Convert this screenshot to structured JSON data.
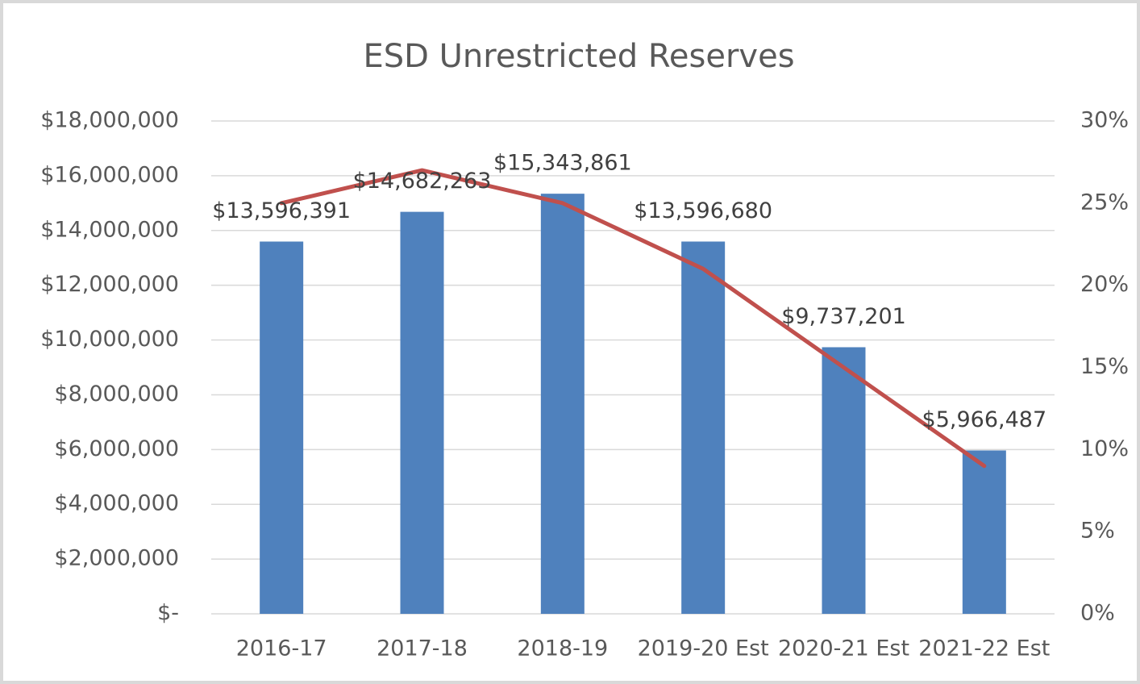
{
  "chart_data": {
    "type": "combo",
    "title": "ESD Unrestricted Reserves",
    "categories": [
      "2016-17",
      "2017-18",
      "2018-19",
      "2019-20 Est",
      "2020-21 Est",
      "2021-22 Est"
    ],
    "series": [
      {
        "type": "bar",
        "color": "#4f81bd",
        "values": [
          13596391,
          14682263,
          15343861,
          13596680,
          9737201,
          5966487
        ],
        "value_labels": [
          "$13,596,391",
          "$14,682,263",
          "$15,343,861",
          "$13,596,680",
          "$9,737,201",
          "$5,966,487"
        ]
      },
      {
        "type": "line",
        "axis": "y2",
        "color": "#c0504d",
        "values": [
          25,
          27,
          25,
          21,
          15,
          9
        ]
      }
    ],
    "ylim": [
      0,
      18000000
    ],
    "yticks": [
      {
        "value": 0,
        "label": "$-"
      },
      {
        "value": 2000000,
        "label": "$2,000,000"
      },
      {
        "value": 4000000,
        "label": "$4,000,000"
      },
      {
        "value": 6000000,
        "label": "$6,000,000"
      },
      {
        "value": 8000000,
        "label": "$8,000,000"
      },
      {
        "value": 10000000,
        "label": "$10,000,000"
      },
      {
        "value": 12000000,
        "label": "$12,000,000"
      },
      {
        "value": 14000000,
        "label": "$14,000,000"
      },
      {
        "value": 16000000,
        "label": "$16,000,000"
      },
      {
        "value": 18000000,
        "label": "$18,000,000"
      }
    ],
    "y2lim": [
      0,
      30
    ],
    "y2ticks": [
      {
        "value": 0,
        "label": "0%"
      },
      {
        "value": 5,
        "label": "5%"
      },
      {
        "value": 10,
        "label": "10%"
      },
      {
        "value": 15,
        "label": "15%"
      },
      {
        "value": 20,
        "label": "20%"
      },
      {
        "value": 25,
        "label": "25%"
      },
      {
        "value": 30,
        "label": "30%"
      }
    ],
    "grid": true
  }
}
